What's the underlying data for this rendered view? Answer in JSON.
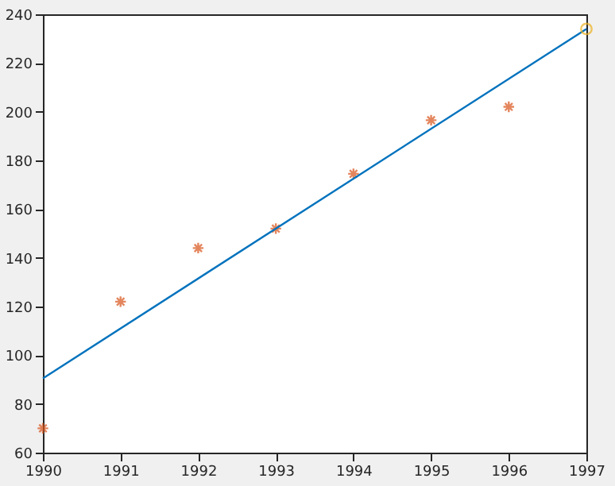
{
  "chart_data": {
    "type": "scatter",
    "xlim": [
      1990,
      1997
    ],
    "xticks": [
      1990,
      1991,
      1992,
      1993,
      1994,
      1995,
      1996,
      1997
    ],
    "ylim": [
      60,
      240
    ],
    "yticks": [
      60,
      80,
      100,
      120,
      140,
      160,
      180,
      200,
      220,
      240
    ],
    "grid": false,
    "series": [
      {
        "marker": "cross",
        "color": "#d95319",
        "x": [
          1990,
          1991,
          1992,
          1993,
          1994,
          1995,
          1996
        ],
        "values": [
          70,
          122,
          144,
          152,
          174.5,
          196.5,
          202
        ]
      },
      {
        "type": "line",
        "marker": "none",
        "line_style": "solid",
        "color": "#0072bd",
        "x": [
          1990,
          1997
        ],
        "values": [
          90.5,
          234
        ]
      },
      {
        "type": "scatter",
        "marker": "circle",
        "color": "#edb120",
        "x": [
          1997
        ],
        "values": [
          234
        ]
      }
    ]
  }
}
